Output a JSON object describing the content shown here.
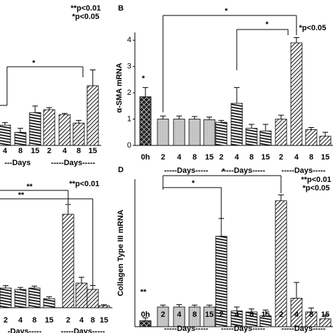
{
  "chart_data": [
    {
      "type": "bar",
      "categories": [
        "4",
        "8",
        "15",
        "2",
        "4",
        "8",
        "15"
      ],
      "group_labels": [
        "---Days",
        "-----Days-----"
      ],
      "values": [
        0.77,
        0.5,
        1.25,
        1.36,
        1.17,
        0.85,
        2.27
      ],
      "errors": [
        0.1,
        0.15,
        0.25,
        0.08,
        0.05,
        0.1,
        0.6
      ],
      "bar_styles": [
        "hstripe",
        "hstripe",
        "hstripe",
        "diag",
        "diag",
        "diag",
        "diag"
      ],
      "ylim": [
        0,
        4.3
      ],
      "annotations": [
        "**p<0.01",
        "*p<0.05"
      ],
      "significance": [
        "*"
      ]
    },
    {
      "type": "bar",
      "title": "B",
      "y_label": "α-SMA mRNA",
      "categories": [
        "0h",
        "2",
        "4",
        "8",
        "15",
        "2",
        "4",
        "8",
        "15",
        "2",
        "4",
        "8",
        "15"
      ],
      "group_labels": [
        "-----Days-----",
        "-----Days-----",
        "-----Days-----"
      ],
      "values": [
        1.85,
        1.0,
        1.0,
        1.0,
        0.98,
        0.88,
        1.6,
        0.65,
        0.55,
        1.0,
        3.9,
        0.6,
        0.35
      ],
      "errors": [
        0.35,
        0.12,
        0.12,
        0.1,
        0.1,
        0.07,
        0.6,
        0.15,
        0.25,
        0.15,
        0.2,
        0.08,
        0.15
      ],
      "bar_styles": [
        "cross",
        "gray",
        "gray",
        "gray",
        "gray",
        "hstripe",
        "hstripe",
        "hstripe",
        "hstripe",
        "diag",
        "diag",
        "diag",
        "diag"
      ],
      "ylim": [
        0,
        4.3
      ],
      "yticks": [
        0,
        1,
        2,
        3,
        4
      ],
      "annotations": [
        "*p<0.05"
      ],
      "significance": [
        "*",
        "*",
        "*"
      ]
    },
    {
      "type": "bar",
      "categories": [
        "2",
        "4",
        "8",
        "15",
        "2",
        "4",
        "8",
        "15"
      ],
      "group_labels": [
        "-Days-----",
        "-----Days-----"
      ],
      "values": [
        1.0,
        0.93,
        1.0,
        0.46,
        4.75,
        1.25,
        0.93,
        0.1
      ],
      "errors": [
        0.12,
        0.1,
        0.1,
        0.1,
        0.5,
        0.3,
        0.2,
        0.05
      ],
      "bar_styles": [
        "hstripe",
        "hstripe",
        "hstripe",
        "hstripe",
        "diag",
        "diag",
        "diag",
        "diag"
      ],
      "ylim": [
        0,
        7.5
      ],
      "annotations": [
        "**p<0.01"
      ],
      "significance": [
        "**",
        "**"
      ]
    },
    {
      "type": "bar",
      "title": "D",
      "y_label": "Collagen Type III mRNA",
      "categories": [
        "0h",
        "2",
        "4",
        "8",
        "15",
        "2",
        "4",
        "8",
        "15",
        "2",
        "4",
        "8",
        "15"
      ],
      "group_labels": [
        "-----Days-----",
        "-----Days-----",
        "-----Days-----"
      ],
      "values": [
        0.3,
        1.0,
        1.0,
        1.0,
        1.0,
        4.6,
        0.8,
        0.75,
        0.55,
        6.4,
        1.45,
        0.75,
        0.4
      ],
      "errors": [
        0.15,
        0.1,
        0.12,
        0.1,
        0.1,
        0.9,
        0.2,
        0.15,
        0.3,
        0.3,
        0.8,
        0.2,
        0.2
      ],
      "bar_styles": [
        "cross",
        "gray",
        "gray",
        "gray",
        "gray",
        "hstripe",
        "hstripe",
        "hstripe",
        "hstripe",
        "diag",
        "diag",
        "diag",
        "diag"
      ],
      "ylim": [
        0,
        7.5
      ],
      "annotations": [
        "**p<0.01",
        "*p<0.05"
      ],
      "significance": [
        "**",
        "*",
        "*"
      ]
    }
  ]
}
